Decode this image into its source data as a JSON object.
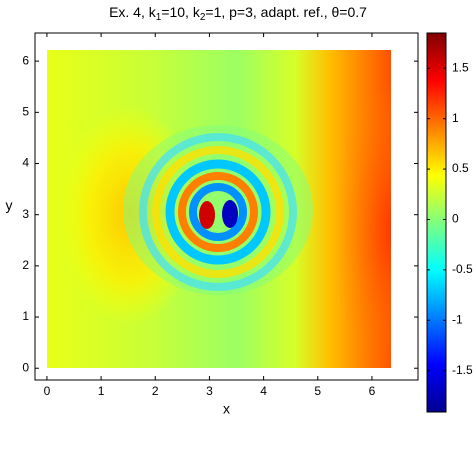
{
  "chart_data": {
    "type": "heatmap",
    "title_parts": [
      "Ex. 4, k",
      "1",
      "=10, k",
      "2",
      "=1, p=3, adapt. ref., θ=0.7"
    ],
    "x_label": "x",
    "y_label": "y",
    "xlim": [
      -0.22,
      6.85
    ],
    "xticks": [
      0,
      1,
      2,
      3,
      4,
      5,
      6
    ],
    "ylim": [
      -0.23,
      6.55
    ],
    "yticks": [
      0,
      1,
      2,
      3,
      4,
      5,
      6
    ],
    "clim": [
      -1.91,
      1.85
    ],
    "cticks": [
      -1.5,
      -1,
      -0.5,
      0,
      0.5,
      1,
      1.5
    ]
  }
}
